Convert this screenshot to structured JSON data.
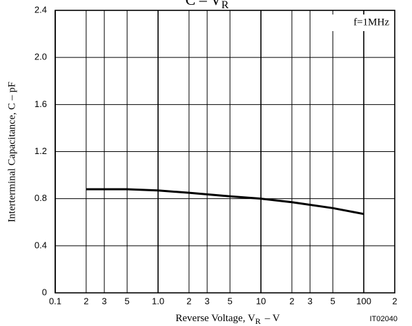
{
  "chart_data": {
    "type": "line",
    "title": {
      "text": "C – V",
      "subscript": "R"
    },
    "x_label": {
      "text": "Reverse Voltage, V",
      "subscript": "R",
      "unit": "– V"
    },
    "y_label": "Interterminal Capacitance, C – pF",
    "annotation": "f=1MHz",
    "figure_id": "IT02040",
    "x_scale": "log",
    "xlim": [
      0.1,
      200
    ],
    "ylim": [
      0,
      2.4
    ],
    "xticks": [
      0.1,
      0.2,
      0.3,
      0.5,
      {
        "value": 1,
        "label": "1.0"
      },
      2,
      3,
      5,
      10,
      20,
      30,
      50,
      100,
      200
    ],
    "xtick_labels_short": [
      "0.1",
      "2",
      "3",
      "5",
      "1.0",
      "2",
      "3",
      "5",
      "10",
      "2",
      "3",
      "5",
      "100",
      "2"
    ],
    "yticks": [
      0,
      0.4,
      0.8,
      1.2,
      1.6,
      {
        "value": 2,
        "label": "2.0"
      },
      2.4
    ],
    "grid": true,
    "series": [
      {
        "color": "#000000",
        "x": [
          0.2,
          0.5,
          1,
          2,
          5,
          10,
          20,
          50,
          100
        ],
        "values": [
          0.88,
          0.88,
          0.87,
          0.85,
          0.82,
          0.8,
          0.77,
          0.72,
          0.67
        ]
      }
    ]
  }
}
